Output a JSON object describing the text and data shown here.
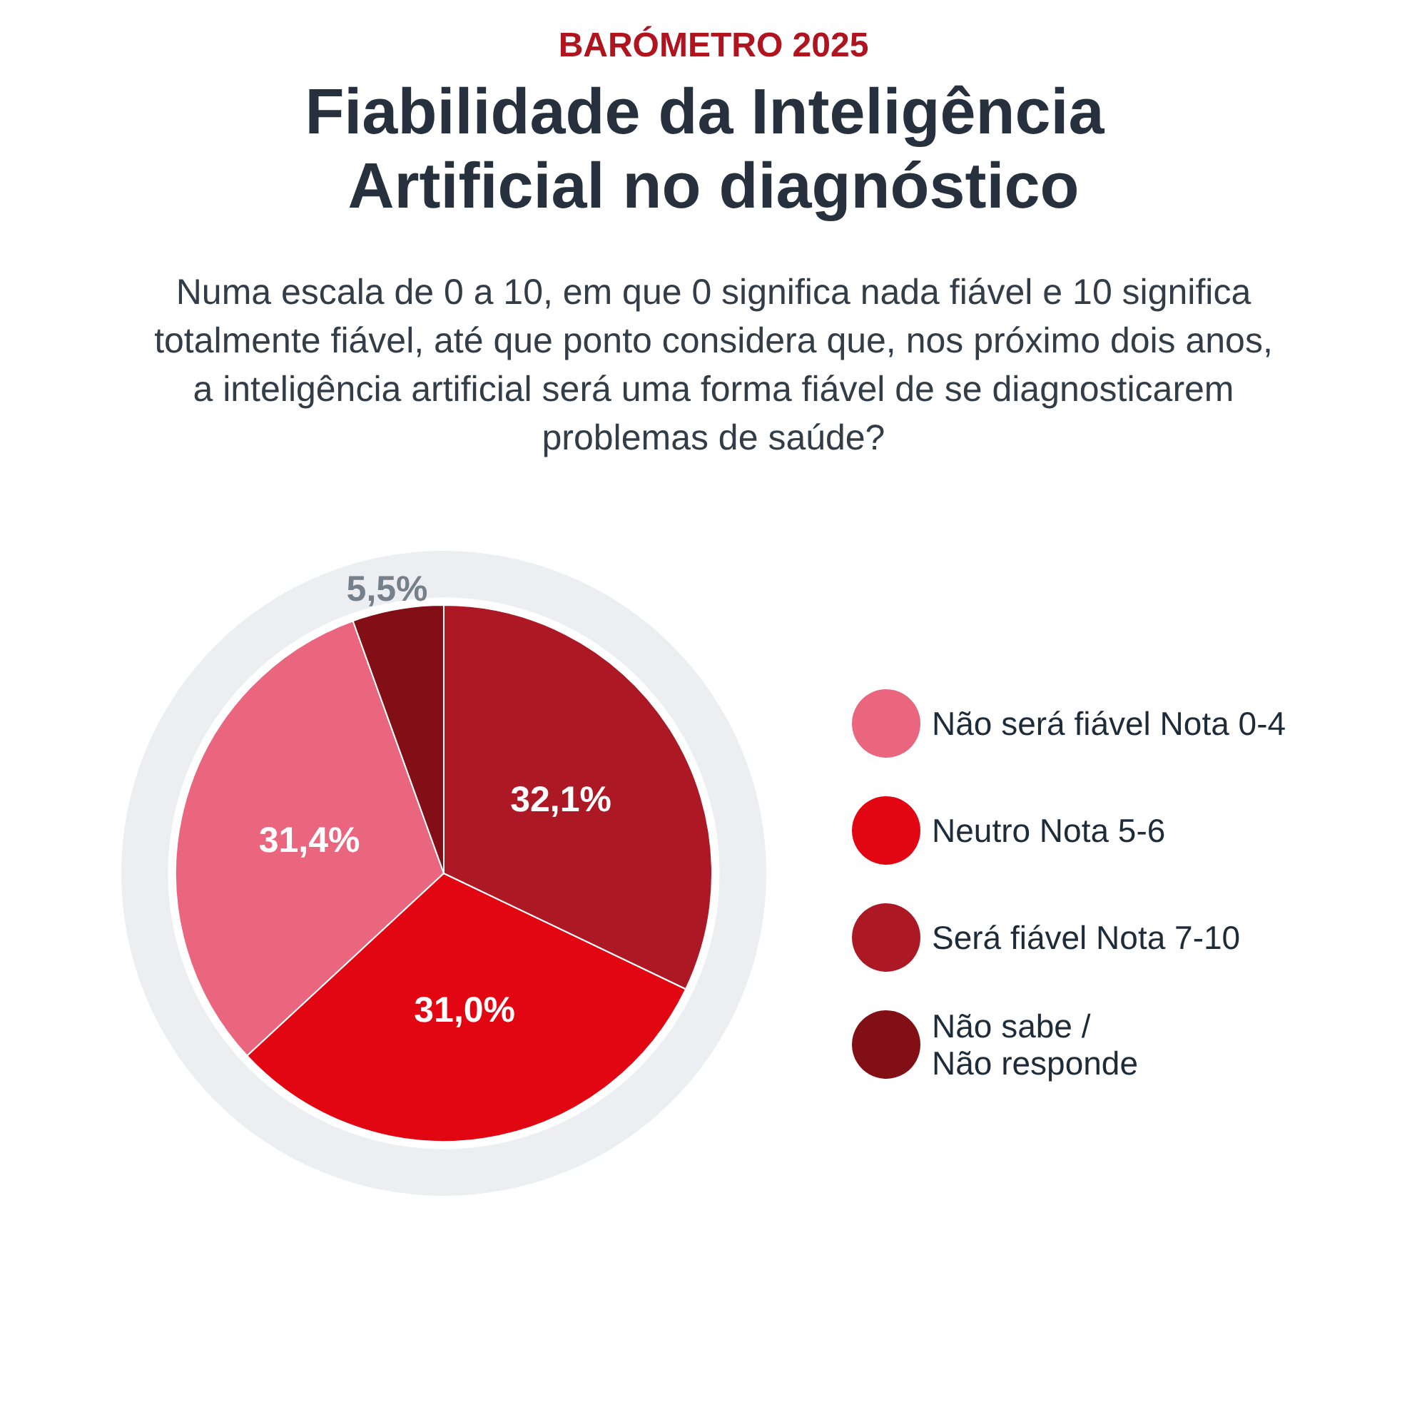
{
  "chart_data": {
    "type": "pie",
    "annotations": [
      "BARÓMETRO 2025"
    ],
    "title": "Fiabilidade da Inteligência Artificial no diagnóstico",
    "subtitle": "Numa escala de 0 a 10, em que 0 significa nada fiável e 10 significa totalmente fiável, até que ponto considera que, nos próximo dois anos, a inteligência artificial será uma forma fiável de se diagnosticarem problemas de saúde?",
    "categories": [
      "Não será fiável Nota 0-4",
      "Neutro Nota 5-6",
      "Será fiável Nota 7-10",
      "Não sabe /\nNão responde"
    ],
    "values": [
      31.4,
      31.0,
      32.1,
      5.5
    ],
    "value_labels": [
      "31,4%",
      "31,0%",
      "32,1%",
      "5,5%"
    ],
    "colors": [
      "#ea667e",
      "#e20613",
      "#ad1825",
      "#820f16"
    ],
    "legend": "right"
  }
}
